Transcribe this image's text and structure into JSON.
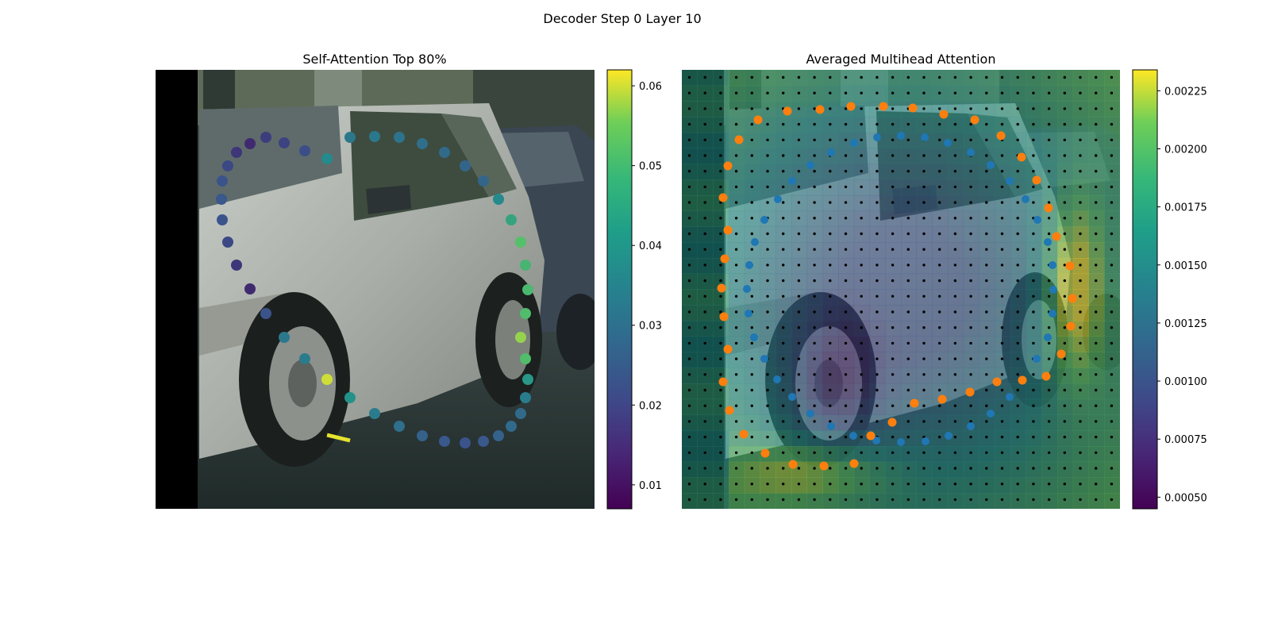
{
  "figure": {
    "suptitle": "Decoder Step 0 Layer 10"
  },
  "colors": {
    "background": "#ffffff",
    "orange_points": "#ff7f0e",
    "blue_points": "#1f77b4",
    "grid_points": "#000000",
    "colormap": [
      "#440154",
      "#3b528b",
      "#21918c",
      "#5ec962",
      "#fde725"
    ]
  },
  "chart_data": [
    {
      "type": "scatter",
      "title": "Self-Attention Top 80%",
      "background": "photo-car",
      "colorbar": {
        "range": [
          0.007,
          0.062
        ],
        "ticks": [
          0.01,
          0.02,
          0.03,
          0.04,
          0.05,
          0.06
        ],
        "tick_labels": [
          "0.01",
          "0.02",
          "0.03",
          "0.04",
          "0.05",
          "0.06"
        ]
      },
      "x": [
        441,
        472,
        503,
        532,
        560,
        586,
        609,
        628,
        644,
        656,
        662,
        665,
        662,
        656,
        662,
        665,
        662,
        656,
        644,
        628,
        609,
        586,
        560,
        532,
        503,
        472,
        441,
        412,
        384,
        358,
        335,
        315,
        298,
        287,
        280,
        279,
        280,
        287,
        298,
        315,
        335,
        358,
        384,
        412
      ],
      "y": [
        173,
        172,
        173,
        181,
        192,
        209,
        228,
        251,
        277,
        305,
        334,
        365,
        395,
        425,
        452,
        478,
        501,
        521,
        537,
        549,
        556,
        558,
        556,
        549,
        537,
        521,
        501,
        478,
        452,
        425,
        395,
        364,
        334,
        305,
        277,
        251,
        228,
        209,
        192,
        181,
        173,
        180,
        190,
        200
      ],
      "values": [
        0.029,
        0.029,
        0.028,
        0.027,
        0.026,
        0.025,
        0.025,
        0.033,
        0.039,
        0.046,
        0.043,
        0.044,
        0.045,
        0.053,
        0.045,
        0.036,
        0.03,
        0.026,
        0.026,
        0.024,
        0.022,
        0.021,
        0.022,
        0.024,
        0.027,
        0.03,
        0.035,
        0.058,
        0.03,
        0.029,
        0.021,
        0.014,
        0.016,
        0.019,
        0.021,
        0.022,
        0.021,
        0.019,
        0.016,
        0.014,
        0.017,
        0.018,
        0.02,
        0.033
      ],
      "edge": {
        "from": [
          412,
          548
        ],
        "to": [
          441,
          555
        ],
        "value": 0.06
      }
    },
    {
      "type": "heatmap",
      "title": "Averaged Multihead Attention",
      "background": "photo-car",
      "grid": {
        "rows": 28,
        "cols": 28,
        "dot_grid": true
      },
      "colorbar": {
        "range": [
          0.00045,
          0.00234
        ],
        "ticks": [
          0.0005,
          0.00075,
          0.001,
          0.00125,
          0.0015,
          0.00175,
          0.002,
          0.00225
        ],
        "tick_labels": [
          "0.00050",
          "0.00075",
          "0.00100",
          "0.00125",
          "0.00150",
          "0.00175",
          "0.00200",
          "0.00225"
        ]
      },
      "orange_points": {
        "x": [
          931,
          955,
          992,
          1033,
          1072,
          1113,
          1150,
          1189,
          1228,
          1261,
          1287,
          1306,
          1321,
          1331,
          1348,
          1351,
          1349,
          1337,
          1318,
          1288,
          1256,
          1222,
          1187,
          1152,
          1124,
          1097,
          1076,
          1038,
          999,
          964,
          937,
          919,
          911,
          917,
          912,
          909,
          913,
          917,
          911,
          917
        ],
        "y": [
          176,
          151,
          140,
          138,
          134,
          134,
          136,
          144,
          151,
          171,
          198,
          227,
          262,
          298,
          335,
          376,
          411,
          446,
          474,
          479,
          481,
          494,
          503,
          508,
          532,
          549,
          584,
          587,
          585,
          571,
          547,
          517,
          481,
          440,
          399,
          363,
          326,
          290,
          249,
          209
        ]
      },
      "blue_points": {
        "x": [
          1047,
          1076,
          1105,
          1135,
          1165,
          1194,
          1223,
          1248,
          1272,
          1292,
          1307,
          1320,
          1326,
          1327,
          1326,
          1320,
          1306,
          1272,
          1248,
          1223,
          1195,
          1166,
          1135,
          1104,
          1075,
          1047,
          1021,
          998,
          979,
          963,
          950,
          943,
          941,
          944,
          951,
          963,
          980,
          998,
          1021
        ],
        "y": [
          192,
          180,
          173,
          171,
          173,
          180,
          192,
          208,
          228,
          251,
          277,
          305,
          334,
          365,
          395,
          425,
          452,
          500,
          521,
          537,
          549,
          556,
          557,
          555,
          549,
          537,
          521,
          500,
          478,
          452,
          425,
          395,
          364,
          334,
          305,
          277,
          251,
          228,
          208
        ]
      }
    }
  ]
}
